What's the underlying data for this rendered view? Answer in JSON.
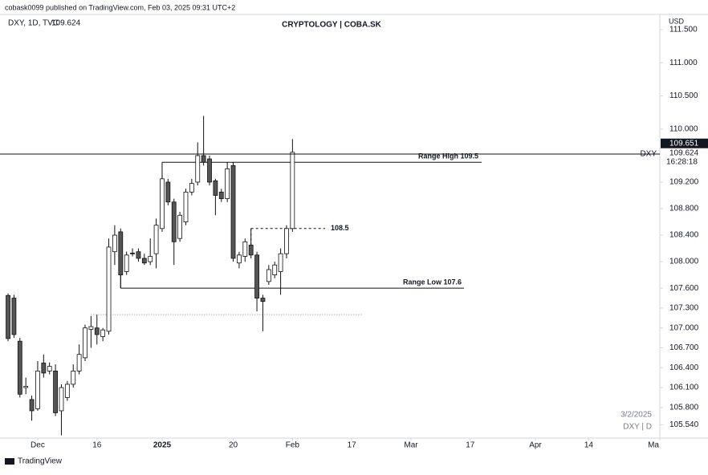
{
  "header": {
    "publisher": "cobask0099 published on TradingView.com, Feb 03, 2025 09:31 UTC+2"
  },
  "chart_data": {
    "type": "candlestick",
    "title": "CRYPTOLOGY | COBA.SK",
    "symbol_info": "DXY, 1D, TVC",
    "last_price": 109.624,
    "price_badge": 109.651,
    "symbol": "DXY",
    "countdown": "16:28:18",
    "axis_unit": "USD",
    "open": [
      107.49,
      107.45,
      106.8,
      106.1,
      105.92,
      105.78,
      106.47,
      106.35,
      106.35,
      105.75,
      105.95,
      106.15,
      106.35,
      106.55,
      106.98,
      107.0,
      106.87,
      106.95,
      108.15,
      108.45,
      107.85,
      108.13,
      108.15,
      108.05,
      108.0,
      108.12,
      108.5,
      109.2,
      108.9,
      108.35,
      108.6,
      109.05,
      109.2,
      109.6,
      109.55,
      109.22,
      109.05,
      108.95,
      109.45,
      107.98,
      108.08,
      108.25,
      108.1,
      107.45,
      107.7,
      107.8,
      107.85,
      108.12,
      108.5
    ],
    "high": [
      107.52,
      107.5,
      106.85,
      106.25,
      105.98,
      106.5,
      106.6,
      106.48,
      106.45,
      106.15,
      106.2,
      106.45,
      106.75,
      107.05,
      107.18,
      107.2,
      107.0,
      108.35,
      108.55,
      108.5,
      108.15,
      108.2,
      108.2,
      108.12,
      108.35,
      108.65,
      109.3,
      109.25,
      108.95,
      108.75,
      109.1,
      109.25,
      109.8,
      110.2,
      109.6,
      109.25,
      109.1,
      109.5,
      109.5,
      108.15,
      108.35,
      108.5,
      108.15,
      107.5,
      107.95,
      108.0,
      108.2,
      108.55,
      109.85
    ],
    "low": [
      106.8,
      106.85,
      105.95,
      106.0,
      105.6,
      105.75,
      106.25,
      106.3,
      105.67,
      105.38,
      105.9,
      106.1,
      106.3,
      106.5,
      106.7,
      106.75,
      106.8,
      106.9,
      107.95,
      107.6,
      107.8,
      108.08,
      108.0,
      107.95,
      107.95,
      107.9,
      108.45,
      108.85,
      107.95,
      108.3,
      108.55,
      109.0,
      109.15,
      109.45,
      109.15,
      108.7,
      108.9,
      108.9,
      108.0,
      107.9,
      108.0,
      108.05,
      107.25,
      106.95,
      107.65,
      107.75,
      107.5,
      108.05,
      108.45
    ],
    "close": [
      106.84,
      106.9,
      106.0,
      106.12,
      105.75,
      106.35,
      106.32,
      106.42,
      105.72,
      106.1,
      106.15,
      106.35,
      106.6,
      107.0,
      107.02,
      106.9,
      106.97,
      108.22,
      108.4,
      107.8,
      108.1,
      108.12,
      108.05,
      107.98,
      108.08,
      108.55,
      109.25,
      108.9,
      108.3,
      108.7,
      109.05,
      109.18,
      109.6,
      109.5,
      109.2,
      109.0,
      108.95,
      109.4,
      108.05,
      108.1,
      108.3,
      108.1,
      107.45,
      107.4,
      107.88,
      107.95,
      108.12,
      108.5,
      109.65
    ],
    "up_color": "#ffffff",
    "down_color": "#555555",
    "edge_color": "#111111",
    "xlim": [
      -1.36,
      110
    ],
    "xticks": [
      {
        "value": 5,
        "label": "Dec"
      },
      {
        "value": 15,
        "label": "16"
      },
      {
        "value": 26,
        "label": "2025"
      },
      {
        "value": 38,
        "label": "20"
      },
      {
        "value": 48,
        "label": "Feb"
      },
      {
        "value": 58,
        "label": "17"
      },
      {
        "value": 68,
        "label": "Mar"
      },
      {
        "value": 78,
        "label": "17"
      },
      {
        "value": 89,
        "label": "Apr"
      },
      {
        "value": 98,
        "label": "14"
      },
      {
        "value": 110,
        "label": "Ma"
      }
    ],
    "ylim": [
      105.35,
      111.73
    ],
    "yticks": [
      {
        "value": 111.5,
        "label": "111.500"
      },
      {
        "value": 111,
        "label": "111.000"
      },
      {
        "value": 110.5,
        "label": "110.500"
      },
      {
        "value": 110,
        "label": "110.000"
      },
      {
        "value": 109.2,
        "label": "109.200"
      },
      {
        "value": 108.8,
        "label": "108.800"
      },
      {
        "value": 108.4,
        "label": "108.400"
      },
      {
        "value": 108,
        "label": "108.000"
      },
      {
        "value": 107.6,
        "label": "107.600"
      },
      {
        "value": 107.3,
        "label": "107.300"
      },
      {
        "value": 107,
        "label": "107.000"
      },
      {
        "value": 106.7,
        "label": "106.700"
      },
      {
        "value": 106.4,
        "label": "106.400"
      },
      {
        "value": 106.1,
        "label": "106.100"
      },
      {
        "value": 105.8,
        "label": "105.800"
      },
      {
        "value": 105.54,
        "label": "105.540"
      }
    ],
    "annotations": [
      {
        "label": "Range High 109.5",
        "value": 109.5
      },
      {
        "label": "108.5",
        "value": 108.5
      },
      {
        "label": "Range Low 107.6",
        "value": 107.6
      }
    ],
    "reference_levels": [
      107.2
    ],
    "watermark_date": "3/2/2025",
    "watermark_symbol": "DXY | D"
  },
  "footer": {
    "brand": "TradingView"
  }
}
